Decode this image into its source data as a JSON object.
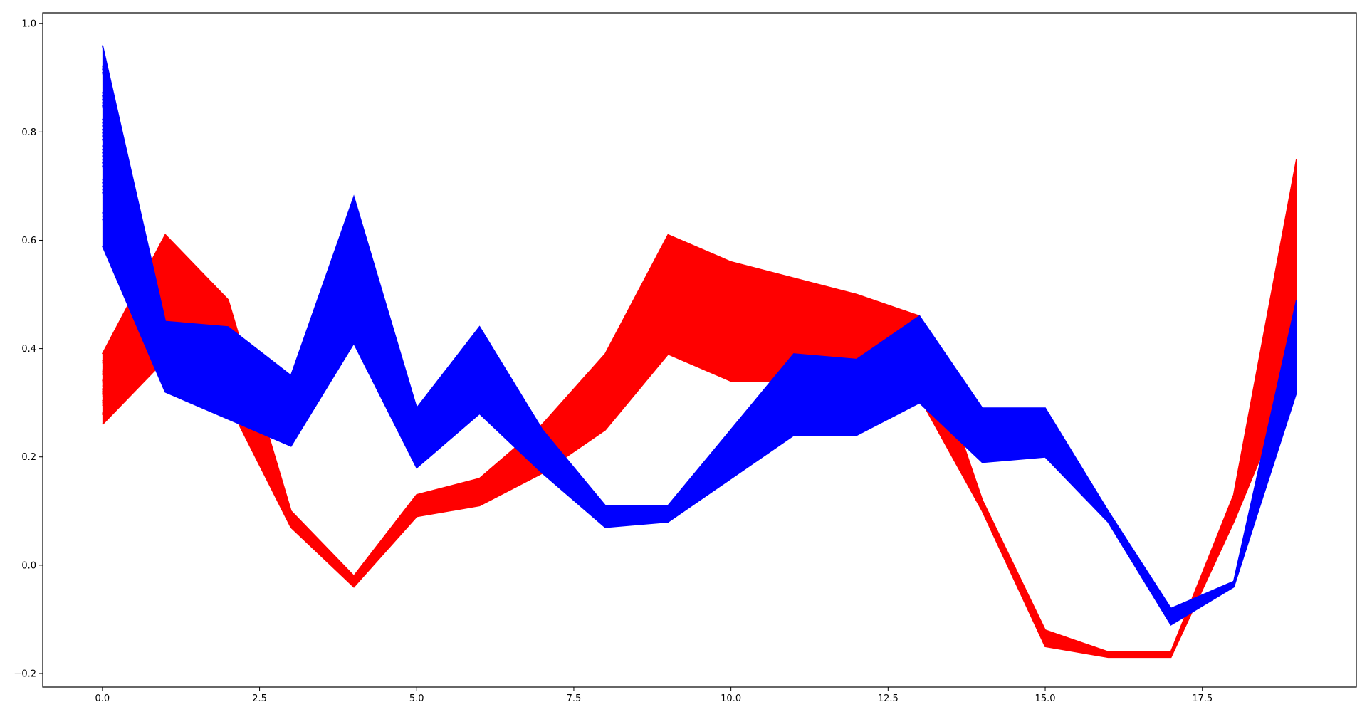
{
  "chart_data": {
    "type": "line",
    "title": "",
    "xlabel": "",
    "ylabel": "",
    "xlim": [
      -0.95,
      19.95
    ],
    "ylim": [
      -0.225,
      1.02
    ],
    "grid": false,
    "legend": "none",
    "x_ticks": [
      0.0,
      2.5,
      5.0,
      7.5,
      10.0,
      12.5,
      15.0,
      17.5
    ],
    "x_tick_labels": [
      "0.0",
      "2.5",
      "5.0",
      "7.5",
      "10.0",
      "12.5",
      "15.0",
      "17.5"
    ],
    "y_ticks": [
      -0.2,
      0.0,
      0.2,
      0.4,
      0.6,
      0.8,
      1.0
    ],
    "y_tick_labels": [
      "−0.2",
      "0.0",
      "0.2",
      "0.4",
      "0.6",
      "0.8",
      "1.0"
    ],
    "x": [
      0,
      1,
      2,
      3,
      4,
      5,
      6,
      7,
      8,
      9,
      10,
      11,
      12,
      13,
      14,
      15,
      16,
      17,
      18,
      19
    ],
    "series": [
      {
        "color": "#ff0000",
        "band_lower": [
          0.26,
          0.38,
          0.3,
          0.07,
          -0.04,
          0.09,
          0.11,
          0.17,
          0.25,
          0.39,
          0.34,
          0.34,
          0.33,
          0.31,
          0.1,
          -0.15,
          -0.17,
          -0.17,
          0.08,
          0.36
        ],
        "band_upper": [
          0.39,
          0.61,
          0.49,
          0.1,
          -0.02,
          0.13,
          0.16,
          0.26,
          0.39,
          0.61,
          0.56,
          0.53,
          0.5,
          0.46,
          0.12,
          -0.12,
          -0.16,
          -0.16,
          0.13,
          0.75
        ]
      },
      {
        "color": "#0000ff",
        "band_lower": [
          0.59,
          0.32,
          0.27,
          0.22,
          0.41,
          0.18,
          0.28,
          0.17,
          0.07,
          0.08,
          0.16,
          0.24,
          0.24,
          0.3,
          0.19,
          0.2,
          0.08,
          -0.11,
          -0.04,
          0.32
        ],
        "band_upper": [
          0.96,
          0.45,
          0.44,
          0.35,
          0.68,
          0.29,
          0.44,
          0.25,
          0.11,
          0.11,
          0.25,
          0.39,
          0.38,
          0.46,
          0.29,
          0.29,
          0.1,
          -0.08,
          -0.03,
          0.49
        ]
      }
    ]
  }
}
